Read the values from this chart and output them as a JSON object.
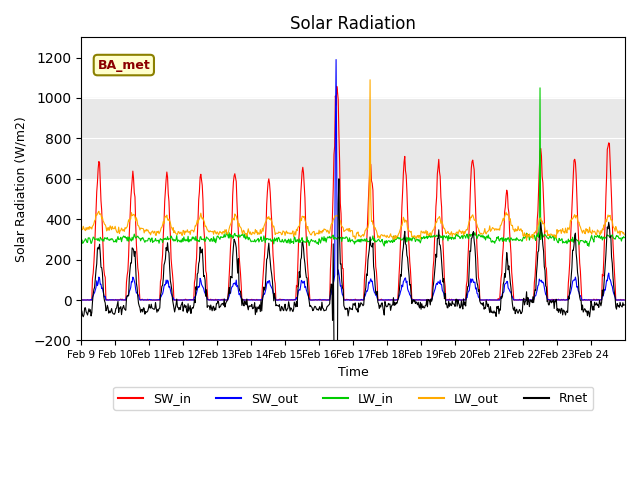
{
  "title": "Solar Radiation",
  "xlabel": "Time",
  "ylabel": "Solar Radiation (W/m2)",
  "ylim": [
    -200,
    1300
  ],
  "yticks": [
    -200,
    0,
    200,
    400,
    600,
    800,
    1000,
    1200
  ],
  "date_labels": [
    "Feb 9",
    "Feb 10",
    "Feb 11",
    "Feb 12",
    "Feb 13",
    "Feb 14",
    "Feb 15",
    "Feb 16",
    "Feb 17",
    "Feb 18",
    "Feb 19",
    "Feb 20",
    "Feb 21",
    "Feb 22",
    "Feb 23",
    "Feb 24"
  ],
  "colors": {
    "SW_in": "#ff0000",
    "SW_out": "#0000ff",
    "LW_in": "#00cc00",
    "LW_out": "#ffaa00",
    "Rnet": "#000000"
  },
  "label_box": "BA_met",
  "shaded_region": [
    600,
    1000
  ],
  "shaded_color": "#e8e8e8",
  "n_days": 16,
  "n_per_day": 48
}
